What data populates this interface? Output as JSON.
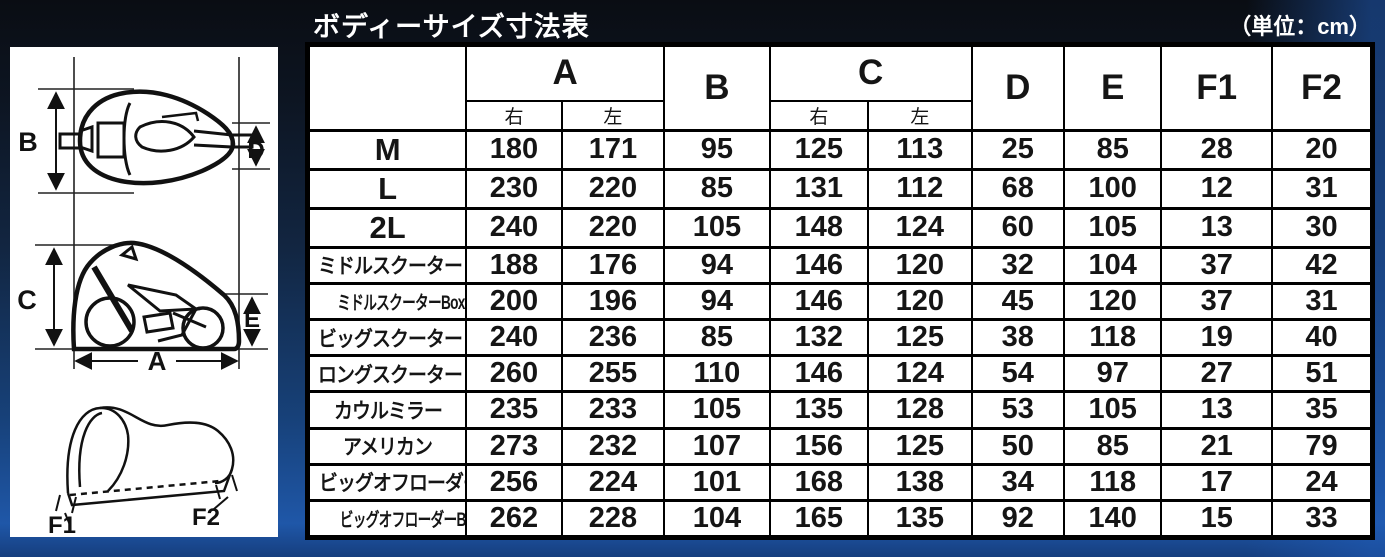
{
  "chart_data": {
    "type": "table",
    "title": "ボディーサイズ寸法表",
    "unit": "（単位：cm）",
    "headers": {
      "a": "A",
      "b": "B",
      "c": "C",
      "d": "D",
      "e": "E",
      "f1": "F1",
      "f2": "F2",
      "right": "右",
      "left": "左"
    },
    "columns": [
      "A 右",
      "A 左",
      "B",
      "C 右",
      "C 左",
      "D",
      "E",
      "F1",
      "F2"
    ],
    "rows": [
      {
        "label": "M",
        "values": [
          180,
          171,
          95,
          125,
          113,
          25,
          85,
          28,
          20
        ]
      },
      {
        "label": "L",
        "values": [
          230,
          220,
          85,
          131,
          112,
          68,
          100,
          12,
          31
        ]
      },
      {
        "label": "2L",
        "values": [
          240,
          220,
          105,
          148,
          124,
          60,
          105,
          13,
          30
        ]
      },
      {
        "label": "ミドルスクーター",
        "values": [
          188,
          176,
          94,
          146,
          120,
          32,
          104,
          37,
          42
        ]
      },
      {
        "label": "ミドルスクーターBox付",
        "values": [
          200,
          196,
          94,
          146,
          120,
          45,
          120,
          37,
          31
        ]
      },
      {
        "label": "ビッグスクーター",
        "values": [
          240,
          236,
          85,
          132,
          125,
          38,
          118,
          19,
          40
        ]
      },
      {
        "label": "ロングスクーター",
        "values": [
          260,
          255,
          110,
          146,
          124,
          54,
          97,
          27,
          51
        ]
      },
      {
        "label": "カウルミラー",
        "values": [
          235,
          233,
          105,
          135,
          128,
          53,
          105,
          13,
          35
        ]
      },
      {
        "label": "アメリカン",
        "values": [
          273,
          232,
          107,
          156,
          125,
          50,
          85,
          21,
          79
        ]
      },
      {
        "label": "ビッグオフローダー",
        "values": [
          256,
          224,
          101,
          168,
          138,
          34,
          118,
          17,
          24
        ]
      },
      {
        "label": "ビッグオフローダーBox付",
        "values": [
          262,
          228,
          104,
          165,
          135,
          92,
          140,
          15,
          33
        ]
      }
    ],
    "layout_hints": {
      "grid": "on",
      "row_label_column": true,
      "merged_headers": [
        "A",
        "C"
      ]
    }
  },
  "colors": {
    "background_accent_blue": "#1f57a8",
    "background_top_dark": "#0a0d13",
    "table_background": "#ffffff",
    "table_border": "#000000",
    "text_on_dark": "#ffffff",
    "text_on_light": "#151515"
  }
}
